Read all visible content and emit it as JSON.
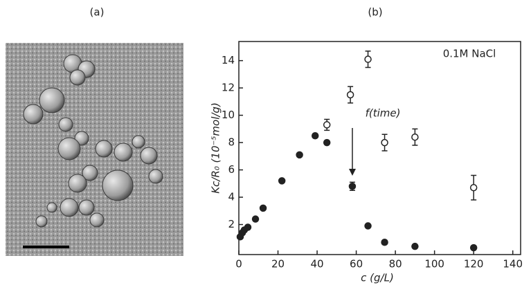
{
  "panel_labels": [
    "(a)",
    "(b)"
  ],
  "chart_data": {
    "type": "scatter",
    "xlabel": "c (g/L)",
    "ylabel": "Kc/R₀ (10⁻⁵mol/g)",
    "annotations": [
      "0.1M NaCl",
      "f(time)"
    ],
    "xlim": [
      0,
      144
    ],
    "ylim": [
      -0.2,
      15.4
    ],
    "xticks": [
      0,
      20,
      40,
      60,
      80,
      100,
      120,
      140
    ],
    "yticks": [
      2,
      4,
      6,
      8,
      10,
      12,
      14
    ],
    "series": [
      {
        "color": "#222222",
        "marker": "filled",
        "x": [
          0.7,
          1.8,
          2.8,
          4.6,
          8.5,
          12.4,
          22,
          31,
          39,
          45,
          58,
          66,
          74.5,
          90,
          120
        ],
        "values": [
          1.1,
          1.4,
          1.6,
          1.8,
          2.4,
          3.2,
          5.2,
          7.1,
          8.5,
          8.0,
          4.8,
          1.9,
          0.7,
          0.4,
          0.3
        ],
        "errors": [
          null,
          null,
          null,
          null,
          null,
          null,
          null,
          null,
          null,
          null,
          0.3,
          null,
          null,
          null,
          null
        ]
      },
      {
        "color": "#222222",
        "marker": "open",
        "x": [
          45,
          57,
          66,
          74.5,
          90,
          120
        ],
        "values": [
          9.3,
          11.5,
          14.1,
          8.0,
          8.4,
          4.7
        ],
        "errors": [
          0.4,
          0.6,
          0.6,
          0.6,
          0.6,
          0.9
        ]
      }
    ]
  }
}
